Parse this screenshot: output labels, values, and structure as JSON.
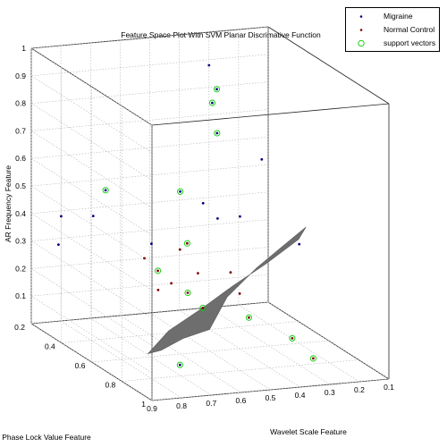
{
  "chart_data": {
    "type": "scatter",
    "title": "Feature Space Plot With SVM Planar Discrimative Function",
    "xlabel": "Wavelet Scale Feature",
    "ylabel": "Phase Lock Value Feature",
    "zlabel": "AR Frequency Feature",
    "x_ticks": [
      "0.1",
      "0.2",
      "0.3",
      "0.4",
      "0.5",
      "0.6",
      "0.7",
      "0.8",
      "0.9"
    ],
    "y_ticks": [
      "0.2",
      "0.4",
      "0.6",
      "0.8",
      "1"
    ],
    "z_ticks": [
      "0.1",
      "0.2",
      "0.3",
      "0.4",
      "0.5",
      "0.6",
      "0.7",
      "0.8",
      "0.9",
      "1"
    ],
    "xlim": [
      0.1,
      0.9
    ],
    "ylim": [
      0.2,
      1.0
    ],
    "zlim": [
      0,
      1
    ],
    "grid": true,
    "legend_position": "top-right",
    "series": [
      {
        "name": "Migraine",
        "color": "#00007f",
        "points": [
          {
            "x": 0.85,
            "y": 0.3,
            "z": 0.42
          },
          {
            "x": 0.9,
            "y": 0.38,
            "z": 0.35
          },
          {
            "x": 0.92,
            "y": 0.65,
            "z": 0.55
          },
          {
            "x": 0.8,
            "y": 0.8,
            "z": 0.49
          },
          {
            "x": 0.6,
            "y": 0.75,
            "z": 0.6
          },
          {
            "x": 0.5,
            "y": 0.65,
            "z": 0.5
          },
          {
            "x": 0.45,
            "y": 0.7,
            "z": 0.52
          },
          {
            "x": 0.3,
            "y": 0.55,
            "z": 0.66
          },
          {
            "x": 0.25,
            "y": 0.7,
            "z": 0.4
          },
          {
            "x": 0.3,
            "y": 0.2,
            "z": 0.88
          },
          {
            "x": 0.35,
            "y": 0.35,
            "z": 0.85
          },
          {
            "x": 0.35,
            "y": 0.32,
            "z": 0.79
          },
          {
            "x": 0.4,
            "y": 0.45,
            "z": 0.73
          },
          {
            "x": 0.55,
            "y": 0.5,
            "z": 0.55
          },
          {
            "x": 0.7,
            "y": 0.3,
            "z": 0.5
          },
          {
            "x": 0.78,
            "y": 0.95,
            "z": 0.1
          }
        ]
      },
      {
        "name": "Normal Control",
        "color": "#7f0000",
        "points": [
          {
            "x": 0.6,
            "y": 0.45,
            "z": 0.25
          },
          {
            "x": 0.58,
            "y": 0.5,
            "z": 0.22
          },
          {
            "x": 0.62,
            "y": 0.4,
            "z": 0.28
          },
          {
            "x": 0.55,
            "y": 0.55,
            "z": 0.2
          },
          {
            "x": 0.5,
            "y": 0.4,
            "z": 0.3
          },
          {
            "x": 0.48,
            "y": 0.48,
            "z": 0.24
          },
          {
            "x": 0.45,
            "y": 0.35,
            "z": 0.3
          },
          {
            "x": 0.4,
            "y": 0.6,
            "z": 0.2
          },
          {
            "x": 0.42,
            "y": 0.7,
            "z": 0.15
          },
          {
            "x": 0.38,
            "y": 0.5,
            "z": 0.24
          },
          {
            "x": 0.35,
            "y": 0.85,
            "z": 0.12
          },
          {
            "x": 0.33,
            "y": 0.95,
            "z": 0.08
          },
          {
            "x": 0.55,
            "y": 0.65,
            "z": 0.18
          },
          {
            "x": 0.65,
            "y": 0.55,
            "z": 0.22
          }
        ]
      }
    ],
    "support_vectors": {
      "name": "support vectors",
      "color": "#00cc00",
      "points": [
        {
          "x": 0.35,
          "y": 0.35,
          "z": 0.85
        },
        {
          "x": 0.35,
          "y": 0.32,
          "z": 0.79
        },
        {
          "x": 0.4,
          "y": 0.45,
          "z": 0.73
        },
        {
          "x": 0.55,
          "y": 0.5,
          "z": 0.55
        },
        {
          "x": 0.7,
          "y": 0.3,
          "z": 0.5
        },
        {
          "x": 0.78,
          "y": 0.95,
          "z": 0.1
        },
        {
          "x": 0.6,
          "y": 0.45,
          "z": 0.25
        },
        {
          "x": 0.55,
          "y": 0.55,
          "z": 0.2
        },
        {
          "x": 0.45,
          "y": 0.35,
          "z": 0.3
        },
        {
          "x": 0.42,
          "y": 0.7,
          "z": 0.15
        },
        {
          "x": 0.35,
          "y": 0.85,
          "z": 0.12
        },
        {
          "x": 0.33,
          "y": 0.95,
          "z": 0.08
        },
        {
          "x": 0.55,
          "y": 0.65,
          "z": 0.18
        }
      ]
    },
    "decision_surface": {
      "color": "#6e6e6e",
      "description_points": [
        {
          "x": 0.75,
          "y": 0.7,
          "z": 0.1
        },
        {
          "x": 0.1,
          "y": 0.3,
          "z": 0.35
        }
      ]
    }
  },
  "legend": {
    "items": [
      {
        "label": "Migraine"
      },
      {
        "label": "Normal Control"
      },
      {
        "label": "support vectors"
      }
    ]
  }
}
